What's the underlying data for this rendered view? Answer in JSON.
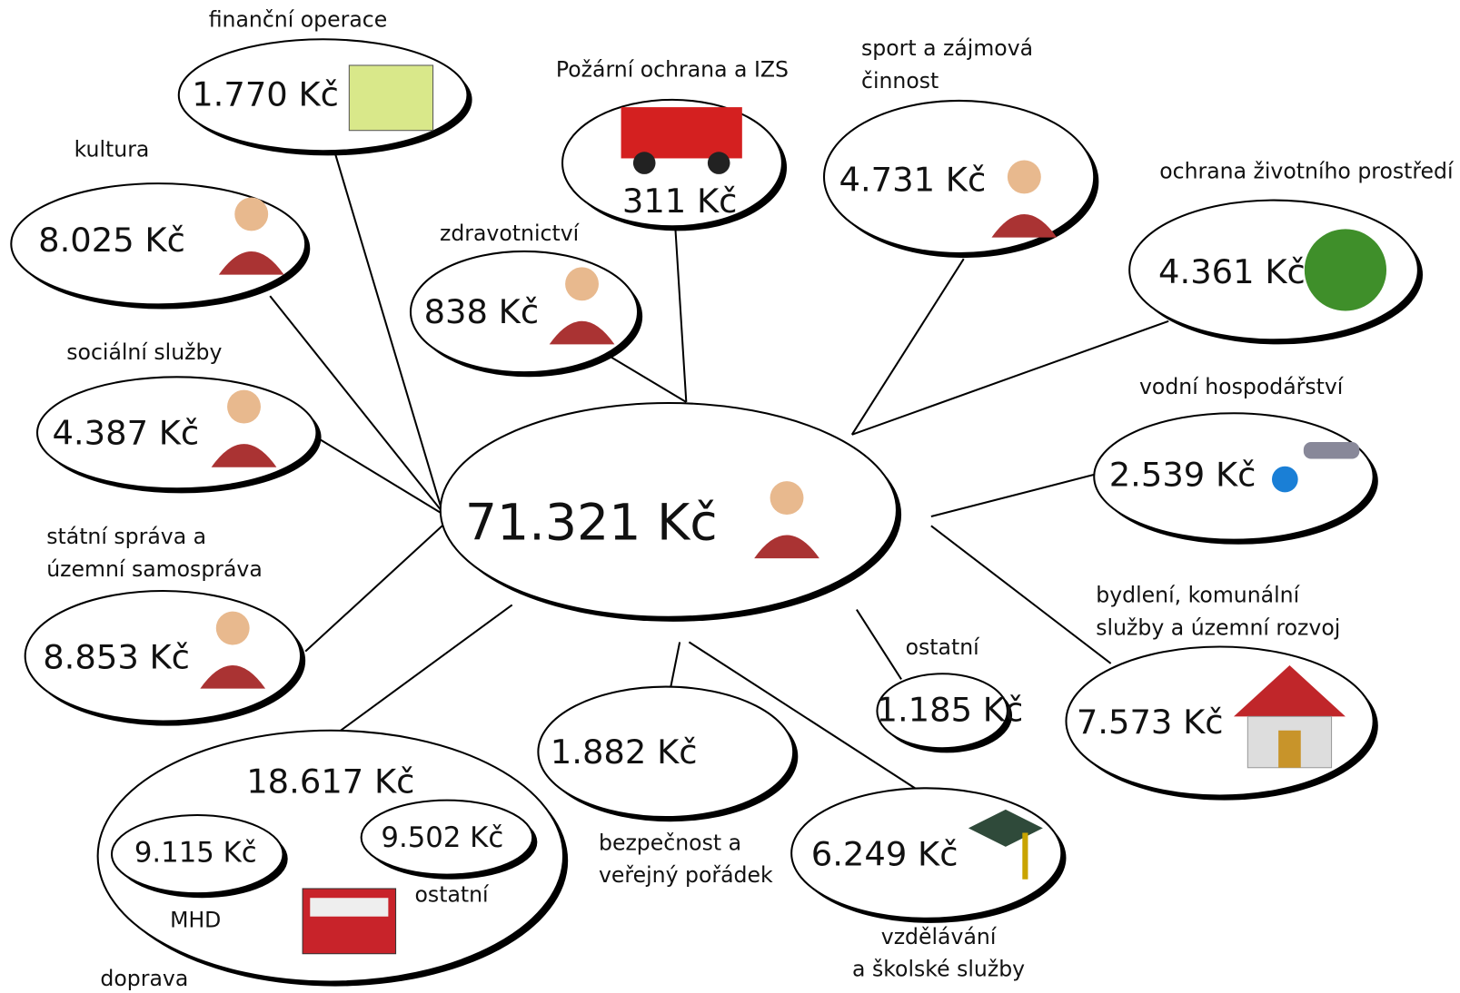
{
  "center": {
    "value": "71.321 Kč"
  },
  "nodes": [
    {
      "label": [
        "finanční operace"
      ],
      "value": "1.770 Kč"
    },
    {
      "label": [
        "kultura"
      ],
      "value": "8.025 Kč"
    },
    {
      "label": [
        "sociální služby"
      ],
      "value": "4.387 Kč"
    },
    {
      "label": [
        "státní správa a",
        "územní samospráva"
      ],
      "value": "8.853 Kč"
    },
    {
      "label": [
        "zdravotnictví"
      ],
      "value": "838 Kč"
    },
    {
      "label": [
        "Požární ochrana a IZS"
      ],
      "value": "311 Kč"
    },
    {
      "label": [
        "sport a zájmová",
        "činnost"
      ],
      "value": "4.731 Kč"
    },
    {
      "label": [
        "ochrana životního prostředí"
      ],
      "value": "4.361 Kč"
    },
    {
      "label": [
        "vodní hospodářství"
      ],
      "value": "2.539 Kč"
    },
    {
      "label": [
        "bydlení, komunální",
        "služby a územní rozvoj"
      ],
      "value": "7.573 Kč"
    },
    {
      "label": [
        "ostatní"
      ],
      "value": "1.185 Kč"
    },
    {
      "label": [
        "bezpečnost a",
        "veřejný pořádek"
      ],
      "value": "1.882 Kč"
    },
    {
      "label": [
        "vzdělávání",
        "a školské služby"
      ],
      "value": "6.249 Kč"
    }
  ],
  "doprava": {
    "label": "doprava",
    "value": "18.617 Kč",
    "parts": [
      {
        "label": "MHD",
        "value": "9.115 Kč"
      },
      {
        "label": "ostatní",
        "value": "9.502 Kč"
      }
    ]
  }
}
